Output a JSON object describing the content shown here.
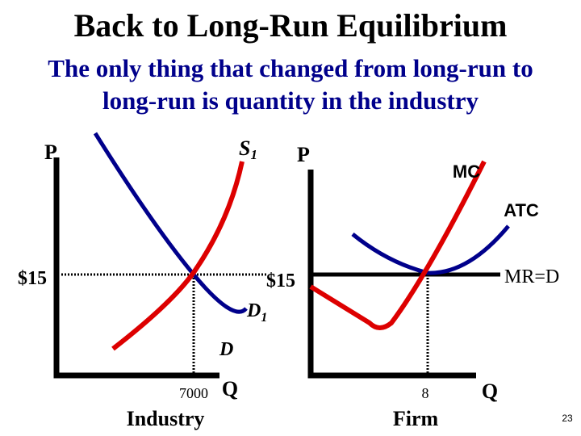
{
  "header": {
    "title": "Back to Long-Run Equilibrium",
    "subtitle_lines": [
      "The only thing that changed from long-run to",
      "long-run is quantity in the industry"
    ]
  },
  "industry": {
    "price_axis": "P",
    "supply": {
      "label": "S",
      "subscript": "1"
    },
    "demand_new": {
      "label": "D",
      "subscript": "1"
    },
    "demand_old": "D",
    "price": "$15",
    "quantity": "7000",
    "quantity_axis": "Q",
    "caption": "Industry"
  },
  "firm": {
    "price_axis": "P",
    "mc": "MC",
    "atc": "ATC",
    "mr": "MR=D",
    "price": "$15",
    "quantity": "8",
    "quantity_axis": "Q",
    "caption": "Firm"
  },
  "slide_number": "23"
}
